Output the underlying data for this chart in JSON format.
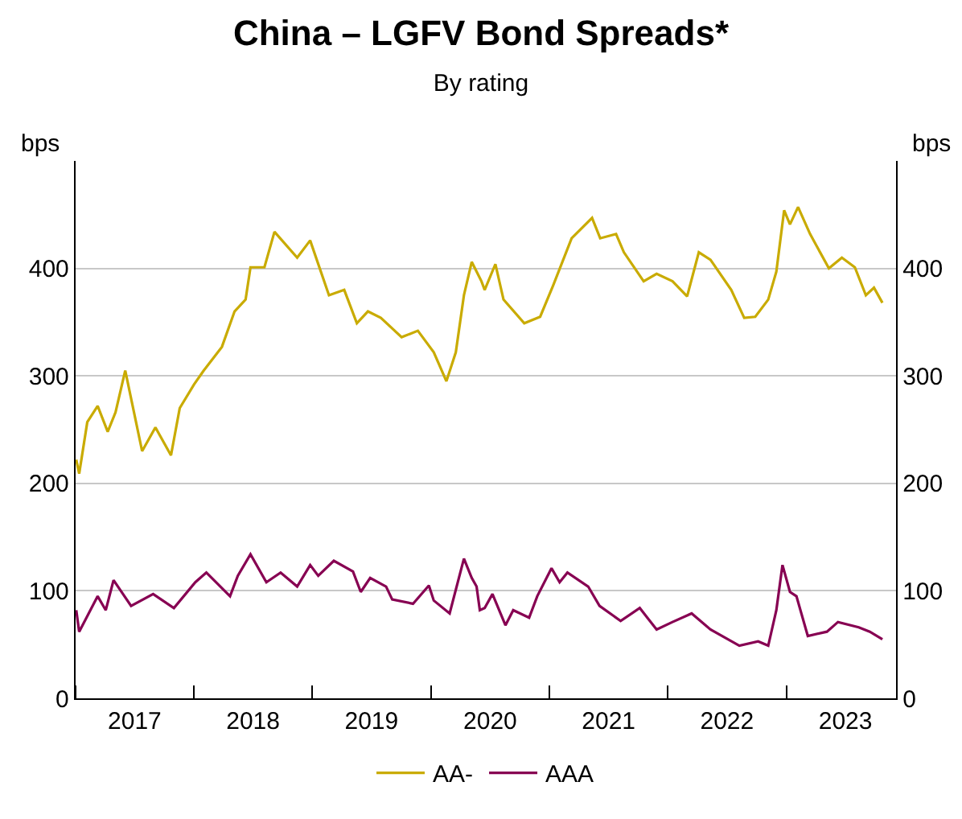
{
  "chart_data": {
    "type": "line",
    "title": "China – LGFV Bond Spreads*",
    "subtitle": "By rating",
    "ylabel": "bps",
    "y2label": "bps",
    "xlim": [
      "2017-01-01",
      "2023-12-05"
    ],
    "xticks": [
      {
        "value": "2017-01-01",
        "label": null
      },
      {
        "value": "2017-07-02",
        "label": "2017"
      },
      {
        "value": "2018-01-01",
        "label": null
      },
      {
        "value": "2018-07-02",
        "label": "2018"
      },
      {
        "value": "2019-01-01",
        "label": null
      },
      {
        "value": "2019-07-02",
        "label": "2019"
      },
      {
        "value": "2020-01-01",
        "label": null
      },
      {
        "value": "2020-07-02",
        "label": "2020"
      },
      {
        "value": "2021-01-01",
        "label": null
      },
      {
        "value": "2021-07-02",
        "label": "2021"
      },
      {
        "value": "2022-01-01",
        "label": null
      },
      {
        "value": "2022-07-02",
        "label": "2022"
      },
      {
        "value": "2023-01-01",
        "label": null
      },
      {
        "value": "2023-07-02",
        "label": "2023"
      }
    ],
    "ylim": [
      0,
      500
    ],
    "yticks": [
      0,
      100,
      200,
      300,
      400
    ],
    "y2lim": [
      0,
      500
    ],
    "y2ticks": [
      0,
      100,
      200,
      300,
      400
    ],
    "grid": "y",
    "legend": "bottom",
    "marker": "none",
    "line_style": "solid",
    "series": [
      {
        "name": "AA-",
        "color": "#c9ab00",
        "x": [
          "2017-01-03",
          "2017-01-12",
          "2017-02-06",
          "2017-03-10",
          "2017-04-10",
          "2017-05-04",
          "2017-06-03",
          "2017-07-25",
          "2017-09-04",
          "2017-10-22",
          "2017-11-18",
          "2018-01-01",
          "2018-01-31",
          "2018-03-28",
          "2018-05-06",
          "2018-06-09",
          "2018-06-24",
          "2018-08-06",
          "2018-09-06",
          "2018-11-15",
          "2018-12-25",
          "2019-02-21",
          "2019-04-09",
          "2019-05-18",
          "2019-06-21",
          "2019-07-31",
          "2019-10-03",
          "2019-11-22",
          "2020-01-10",
          "2020-02-18",
          "2020-03-18",
          "2020-04-12",
          "2020-05-06",
          "2020-06-05",
          "2020-06-15",
          "2020-07-18",
          "2020-08-12",
          "2020-10-15",
          "2020-12-03",
          "2021-01-12",
          "2021-03-10",
          "2021-05-12",
          "2021-06-06",
          "2021-07-25",
          "2021-08-18",
          "2021-10-18",
          "2021-11-27",
          "2022-01-15",
          "2022-03-01",
          "2022-04-06",
          "2022-05-12",
          "2022-07-15",
          "2022-08-24",
          "2022-09-27",
          "2022-11-06",
          "2022-12-01",
          "2022-12-25",
          "2023-01-12",
          "2023-02-06",
          "2023-03-15",
          "2023-05-12",
          "2023-06-21",
          "2023-07-31",
          "2023-09-03",
          "2023-09-28",
          "2023-10-24"
        ],
        "values": [
          222,
          209,
          257,
          272,
          248,
          266,
          305,
          230,
          252,
          226,
          270,
          292,
          305,
          327,
          360,
          371,
          401,
          401,
          434,
          410,
          426,
          375,
          380,
          349,
          360,
          354,
          336,
          342,
          322,
          295,
          322,
          375,
          406,
          388,
          380,
          404,
          371,
          349,
          355,
          384,
          428,
          447,
          428,
          432,
          415,
          388,
          395,
          388,
          374,
          415,
          408,
          380,
          354,
          355,
          371,
          397,
          454,
          441,
          457,
          432,
          400,
          410,
          401,
          375,
          382,
          368
        ]
      },
      {
        "name": "AAA",
        "color": "#870052",
        "x": [
          "2017-01-03",
          "2017-01-12",
          "2017-03-10",
          "2017-04-04",
          "2017-04-28",
          "2017-06-21",
          "2017-08-28",
          "2017-10-31",
          "2018-01-05",
          "2018-02-08",
          "2018-04-22",
          "2018-05-16",
          "2018-06-24",
          "2018-08-12",
          "2018-09-25",
          "2018-11-15",
          "2018-12-25",
          "2019-01-19",
          "2019-03-08",
          "2019-05-06",
          "2019-05-30",
          "2019-06-28",
          "2019-08-16",
          "2019-09-04",
          "2019-11-07",
          "2019-12-26",
          "2020-01-10",
          "2020-02-28",
          "2020-04-12",
          "2020-05-06",
          "2020-05-21",
          "2020-05-31",
          "2020-06-15",
          "2020-07-09",
          "2020-08-18",
          "2020-09-11",
          "2020-10-30",
          "2020-11-24",
          "2021-01-07",
          "2021-02-01",
          "2021-02-25",
          "2021-04-30",
          "2021-06-04",
          "2021-08-08",
          "2021-10-06",
          "2021-11-27",
          "2022-01-15",
          "2022-03-15",
          "2022-05-12",
          "2022-08-09",
          "2022-10-06",
          "2022-11-06",
          "2022-12-01",
          "2022-12-20",
          "2023-01-12",
          "2023-02-01",
          "2023-03-08",
          "2023-05-06",
          "2023-06-09",
          "2023-08-12",
          "2023-09-15",
          "2023-10-24"
        ],
        "values": [
          82,
          62,
          95,
          82,
          110,
          86,
          97,
          84,
          108,
          117,
          95,
          114,
          134,
          108,
          117,
          104,
          124,
          114,
          128,
          118,
          99,
          112,
          104,
          92,
          88,
          105,
          91,
          79,
          130,
          112,
          104,
          82,
          84,
          97,
          68,
          82,
          75,
          95,
          121,
          108,
          117,
          104,
          86,
          72,
          84,
          64,
          71,
          79,
          64,
          49,
          53,
          49,
          82,
          124,
          99,
          95,
          58,
          62,
          71,
          66,
          62,
          55
        ]
      }
    ]
  }
}
